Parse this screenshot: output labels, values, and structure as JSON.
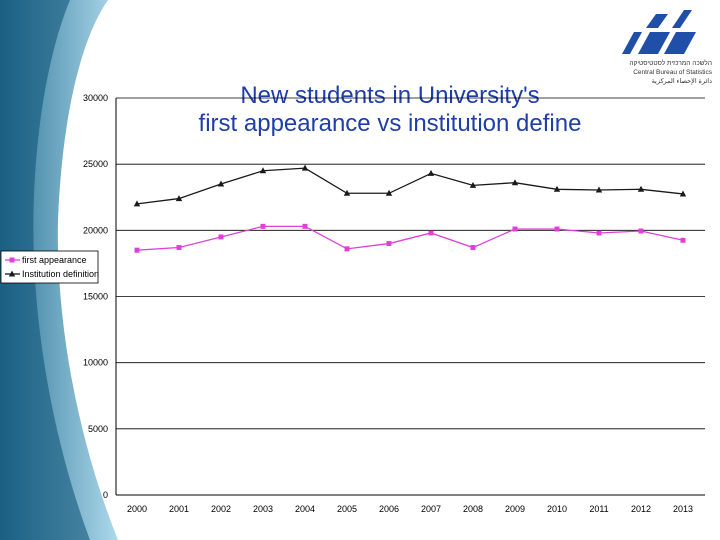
{
  "colors": {
    "series1": "#e040d8",
    "series2": "#1a1a1a",
    "title": "#1f3fa8",
    "logo": "#1f4fa8"
  },
  "logo": {
    "icon": "cbs-logo-icon",
    "org_hebrew": "הלשכה המרכזית לסטטיסטיקה",
    "org_english": "Central Bureau of Statistics",
    "org_arabic": "دائرة الإحصاء المركزية"
  },
  "chart_data": {
    "type": "line",
    "title_line1": "New students in University's",
    "title_line2": "first appearance vs institution define",
    "categories": [
      "2000",
      "2001",
      "2002",
      "2003",
      "2004",
      "2005",
      "2006",
      "2007",
      "2008",
      "2009",
      "2010",
      "2011",
      "2012",
      "2013"
    ],
    "ylim": [
      0,
      30000
    ],
    "yticks": [
      "0",
      "5000",
      "10000",
      "15000",
      "20000",
      "25000",
      "30000"
    ],
    "grid": true,
    "legend_position": "left",
    "series": [
      {
        "name": "first appearance",
        "marker": "square",
        "values": [
          18500,
          18700,
          19500,
          20300,
          20300,
          18600,
          19000,
          19800,
          18700,
          20100,
          20100,
          19800,
          19950,
          19250
        ]
      },
      {
        "name": "Institution definition",
        "marker": "triangle",
        "values": [
          22000,
          22400,
          23500,
          24500,
          24700,
          22800,
          22800,
          24300,
          23400,
          23600,
          23100,
          23050,
          23100,
          22750
        ]
      }
    ]
  }
}
